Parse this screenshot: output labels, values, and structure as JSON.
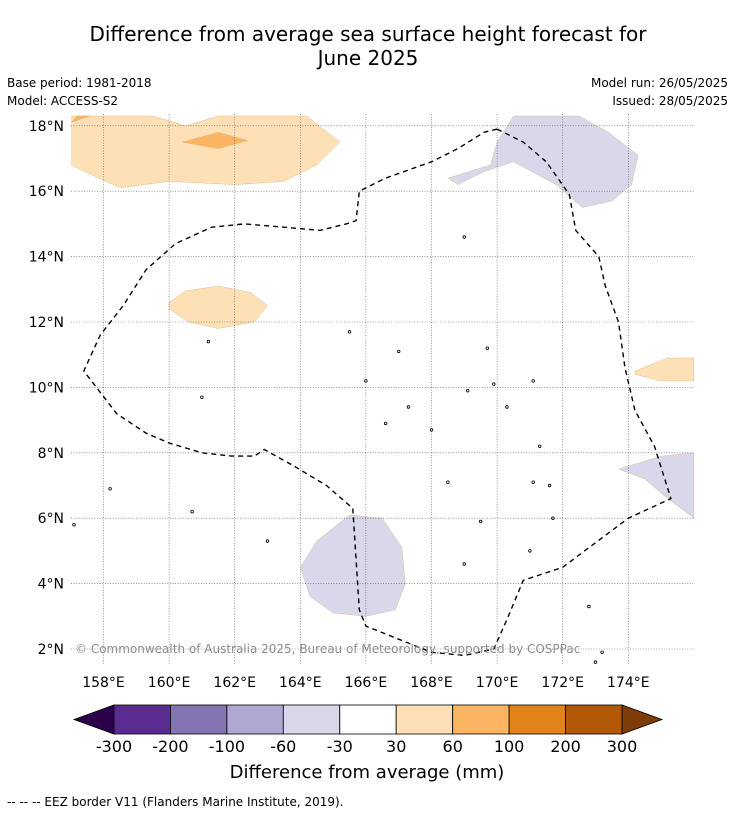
{
  "title_line1": "Difference from average sea surface height forecast for",
  "title_line2": "June 2025",
  "base_period": "Base period: 1981-2018",
  "model": "Model: ACCESS-S2",
  "model_run": "Model run: 26/05/2025",
  "issued": "Issued: 28/05/2025",
  "copyright": "© Commonwealth of Australia 2025, Bureau of Meteorology, supported by COSPPac",
  "footnote": "--  --  -- EEZ border V11 (Flanders Marine Institute, 2019).",
  "map": {
    "lon_range": [
      157,
      176
    ],
    "lat_range": [
      1.5,
      18.3
    ],
    "lon_ticks": [
      158,
      160,
      162,
      164,
      166,
      168,
      170,
      172,
      174
    ],
    "lon_tick_labels": [
      "158°E",
      "160°E",
      "162°E",
      "164°E",
      "166°E",
      "168°E",
      "170°E",
      "172°E",
      "174°E"
    ],
    "lat_ticks": [
      2,
      4,
      6,
      8,
      10,
      12,
      14,
      16,
      18
    ],
    "lat_tick_labels": [
      "2°N",
      "4°N",
      "6°N",
      "8°N",
      "10°N",
      "12°N",
      "14°N",
      "16°N",
      "18°N"
    ],
    "grid": true,
    "fill_regions": [
      {
        "category": "30 to 60",
        "color": "#fde0b6",
        "points": [
          [
            157,
            18.3
          ],
          [
            158.5,
            18.3
          ],
          [
            159.5,
            18.3
          ],
          [
            160.5,
            18
          ],
          [
            161.5,
            18.3
          ],
          [
            163,
            18.3
          ],
          [
            164.2,
            18.3
          ],
          [
            165.2,
            17.5
          ],
          [
            164.5,
            16.8
          ],
          [
            163.5,
            16.3
          ],
          [
            162,
            16.2
          ],
          [
            160,
            16.3
          ],
          [
            158.5,
            16.1
          ],
          [
            157,
            16.8
          ]
        ]
      },
      {
        "category": "60 to 100",
        "color": "#fbb462",
        "points": [
          [
            160.4,
            17.5
          ],
          [
            161.5,
            17.8
          ],
          [
            162.4,
            17.55
          ],
          [
            161.5,
            17.3
          ]
        ]
      },
      {
        "category": "60 to 100",
        "color": "#fbb462",
        "points": [
          [
            157,
            18.1
          ],
          [
            157.6,
            18.3
          ],
          [
            157.2,
            18.3
          ]
        ]
      },
      {
        "category": "30 to 60",
        "color": "#fde0b6",
        "points": [
          [
            160.0,
            12.6
          ],
          [
            160.5,
            12.95
          ],
          [
            161.5,
            13.1
          ],
          [
            162.5,
            12.9
          ],
          [
            163.0,
            12.5
          ],
          [
            162.6,
            12.0
          ],
          [
            161.5,
            11.8
          ],
          [
            160.6,
            12.0
          ],
          [
            160.0,
            12.4
          ]
        ]
      },
      {
        "category": "30 to 60",
        "color": "#fde0b6",
        "points": [
          [
            174.2,
            10.5
          ],
          [
            175.2,
            10.9
          ],
          [
            176,
            10.9
          ],
          [
            176,
            10.2
          ],
          [
            175,
            10.2
          ],
          [
            174.2,
            10.4
          ]
        ]
      },
      {
        "category": "-60 to -30",
        "color": "#d8d8ea",
        "points": [
          [
            168.5,
            16.4
          ],
          [
            169.8,
            16.8
          ],
          [
            170.0,
            17.5
          ],
          [
            170.5,
            18.3
          ],
          [
            172.5,
            18.3
          ],
          [
            173.4,
            17.8
          ],
          [
            174.3,
            17.1
          ],
          [
            174.1,
            16.2
          ],
          [
            173.5,
            15.7
          ],
          [
            172.6,
            15.5
          ],
          [
            171.8,
            16.2
          ],
          [
            170.5,
            16.9
          ],
          [
            169.6,
            16.6
          ],
          [
            168.8,
            16.2
          ]
        ]
      },
      {
        "category": "-60 to -30",
        "color": "#d8d8ea",
        "points": [
          [
            173.7,
            7.5
          ],
          [
            175.0,
            7.9
          ],
          [
            176,
            8.0
          ],
          [
            176,
            6.0
          ],
          [
            175.2,
            6.6
          ],
          [
            174.5,
            7.2
          ]
        ]
      },
      {
        "category": "-60 to -30",
        "color": "#d8d8ea",
        "points": [
          [
            164.0,
            4.5
          ],
          [
            164.5,
            5.3
          ],
          [
            165.5,
            6.1
          ],
          [
            166.5,
            6.0
          ],
          [
            167.1,
            5.1
          ],
          [
            167.2,
            4.0
          ],
          [
            166.9,
            3.2
          ],
          [
            166.0,
            3.0
          ],
          [
            165.0,
            3.1
          ],
          [
            164.3,
            3.6
          ]
        ]
      }
    ],
    "eez_border": [
      [
        170.0,
        17.9
      ],
      [
        170.8,
        17.5
      ],
      [
        171.5,
        16.9
      ],
      [
        172.2,
        15.9
      ],
      [
        172.4,
        14.8
      ],
      [
        173.1,
        14.0
      ],
      [
        173.3,
        13.1
      ],
      [
        173.7,
        12.0
      ],
      [
        173.9,
        10.6
      ],
      [
        174.2,
        9.3
      ],
      [
        174.8,
        8.2
      ],
      [
        175.3,
        6.6
      ],
      [
        174.0,
        6.0
      ],
      [
        172.0,
        4.5
      ],
      [
        170.8,
        4.1
      ],
      [
        170.3,
        2.9
      ],
      [
        169.9,
        2.0
      ],
      [
        169.0,
        1.8
      ],
      [
        168.0,
        1.9
      ],
      [
        167.0,
        2.3
      ],
      [
        166.0,
        2.7
      ],
      [
        165.8,
        3.2
      ],
      [
        165.6,
        6.3
      ],
      [
        164.8,
        7.0
      ],
      [
        163.8,
        7.6
      ],
      [
        162.9,
        8.1
      ],
      [
        162.6,
        7.9
      ],
      [
        161.9,
        7.9
      ],
      [
        161.0,
        8.0
      ],
      [
        160.0,
        8.3
      ],
      [
        159.3,
        8.6
      ],
      [
        158.4,
        9.2
      ],
      [
        157.4,
        10.5
      ],
      [
        157.9,
        11.6
      ],
      [
        158.6,
        12.5
      ],
      [
        159.3,
        13.6
      ],
      [
        160.2,
        14.4
      ],
      [
        161.3,
        14.9
      ],
      [
        162.3,
        15.0
      ],
      [
        163.5,
        14.9
      ],
      [
        164.6,
        14.8
      ],
      [
        165.4,
        15.0
      ],
      [
        165.7,
        15.1
      ],
      [
        165.8,
        16.0
      ],
      [
        166.6,
        16.4
      ],
      [
        168.0,
        16.9
      ],
      [
        168.8,
        17.3
      ],
      [
        169.6,
        17.8
      ],
      [
        170.0,
        17.9
      ]
    ],
    "islands": [
      [
        158.2,
        6.9
      ],
      [
        163.0,
        5.3
      ],
      [
        168.5,
        7.1
      ],
      [
        169.0,
        4.6
      ],
      [
        169.5,
        5.9
      ],
      [
        171.1,
        7.1
      ],
      [
        171.6,
        7.0
      ],
      [
        171.7,
        6.0
      ],
      [
        172.8,
        3.3
      ],
      [
        173.2,
        1.9
      ],
      [
        173.0,
        1.6
      ],
      [
        168.0,
        8.7
      ],
      [
        167.3,
        9.4
      ],
      [
        166.6,
        8.9
      ],
      [
        169.1,
        9.9
      ],
      [
        169.9,
        10.1
      ],
      [
        170.3,
        9.4
      ],
      [
        171.1,
        10.2
      ],
      [
        171.3,
        8.2
      ],
      [
        166.0,
        10.2
      ],
      [
        167.0,
        11.1
      ],
      [
        169.7,
        11.2
      ],
      [
        165.5,
        11.7
      ],
      [
        161.2,
        11.4
      ],
      [
        169.0,
        14.6
      ],
      [
        161.0,
        9.7
      ],
      [
        160.7,
        6.2
      ],
      [
        157.1,
        5.8
      ],
      [
        171.0,
        5.0
      ]
    ]
  },
  "colorbar": {
    "labels": [
      "-300",
      "-200",
      "-100",
      "-60",
      "-30",
      "30",
      "60",
      "100",
      "200",
      "300"
    ],
    "colors": [
      "#5b2c8f",
      "#8474b2",
      "#b0a7d3",
      "#d8d8ea",
      "#ffffff",
      "#fde0b6",
      "#fbb462",
      "#e2821b",
      "#b35806"
    ],
    "under_color": "#2d004b",
    "over_color": "#7f3b08",
    "title": "Difference from average (mm)"
  }
}
